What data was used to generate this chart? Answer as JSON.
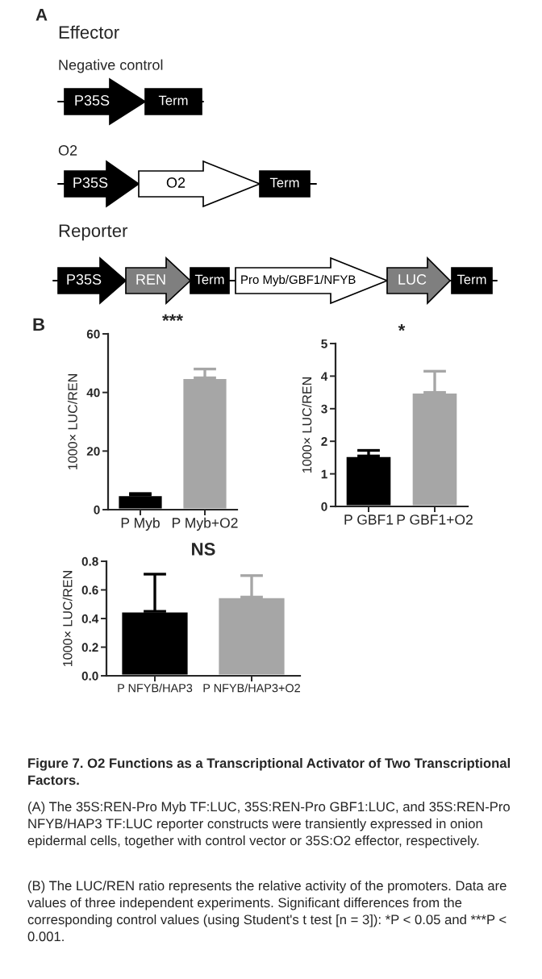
{
  "chart_data": [
    {
      "type": "other",
      "annotations": [
        "A",
        "Effector",
        "Negative control",
        "P35S",
        "Term",
        "O2",
        "P35S",
        "O2",
        "Term",
        "Reporter",
        "P35S",
        "REN",
        "Term",
        "Pro Myb/GBF1/NFYB",
        "LUC",
        "Term"
      ]
    },
    {
      "type": "bar",
      "title": "B",
      "categories": [
        "P Myb",
        "P Myb+O2"
      ],
      "values": [
        5,
        45
      ],
      "errors": [
        [
          5,
          5.5
        ],
        [
          45,
          48
        ]
      ],
      "colors": [
        "#000000",
        "#a6a6a6"
      ],
      "ylabel": "1000× LUC/REN",
      "ylim": [
        0,
        60
      ],
      "yticks": [
        0,
        20,
        40,
        60
      ],
      "annotations": [
        "***"
      ]
    },
    {
      "type": "bar",
      "categories": [
        "P GBF1",
        "P GBF1+O2"
      ],
      "values": [
        1.55,
        3.5
      ],
      "errors": [
        [
          1.55,
          1.72
        ],
        [
          3.5,
          4.15
        ]
      ],
      "colors": [
        "#000000",
        "#a6a6a6"
      ],
      "ylabel": "1000× LUC/REN",
      "ylim": [
        0,
        5
      ],
      "yticks": [
        0,
        1,
        2,
        3,
        4,
        5
      ],
      "annotations": [
        "*"
      ]
    },
    {
      "type": "bar",
      "categories": [
        "P NFYB/HAP3",
        "P NFYB/HAP3+O2"
      ],
      "values": [
        0.45,
        0.55
      ],
      "errors": [
        [
          0.45,
          0.71
        ],
        [
          0.55,
          0.7
        ]
      ],
      "colors": [
        "#000000",
        "#a6a6a6"
      ],
      "ylabel": "1000× LUC/REN",
      "ylim": [
        0,
        0.8
      ],
      "yticks": [
        {
          "value": 0,
          "label": "0.0"
        },
        {
          "value": 0.2,
          "label": "0.2"
        },
        {
          "value": 0.4,
          "label": "0.4"
        },
        {
          "value": 0.6,
          "label": "0.6"
        },
        {
          "value": 0.8,
          "label": "0.8"
        }
      ],
      "annotations": [
        "NS",
        "Figure 7. O2 Functions as a Transcriptional Activator of Two Transcriptional Factors.",
        "(A) The 35S:REN-Pro Myb TF:LUC, 35S:REN-Pro GBF1:LUC, and 35S:REN-Pro NFYB/HAP3 TF:LUC reporter constructs were transiently expressed in onion epidermal cells, together with control vector or 35S:O2 effector, respectively.",
        "(B) The LUC/REN ratio represents the relative activity of the promoters. Data are values of three independent experiments. Significant differences from the corresponding control values (using Student's t test [n = 3]): *P < 0.05 and ***P < 0.001."
      ]
    }
  ]
}
